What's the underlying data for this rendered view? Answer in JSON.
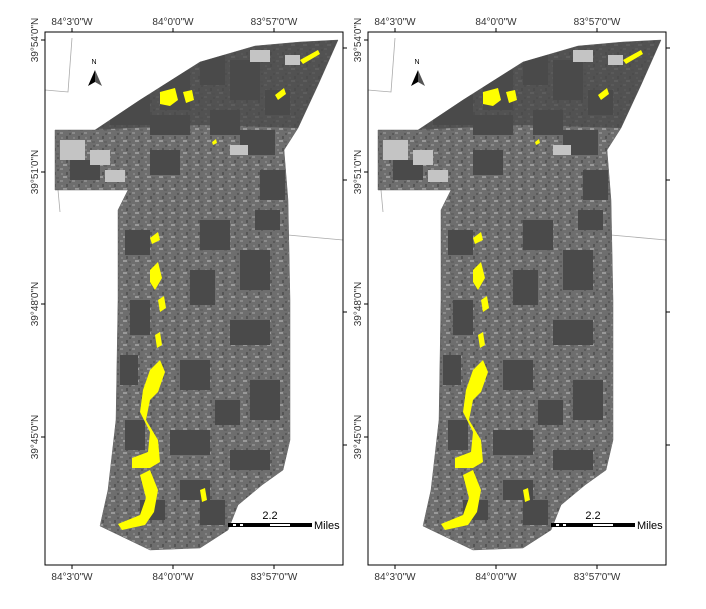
{
  "panels": [
    {
      "id": "left",
      "lon_labels": [
        "84°3'0\"W",
        "84°0'0\"W",
        "83°57'0\"W"
      ],
      "lat_labels": [
        "39°54'0\"N",
        "39°51'0\"N",
        "39°48'0\"N",
        "39°45'0\"N"
      ],
      "north_label": "N",
      "scale_value": "2.2",
      "scale_unit": "Miles"
    },
    {
      "id": "right",
      "lon_labels": [
        "84°3'0\"W",
        "84°0'0\"W",
        "83°57'0\"W"
      ],
      "lat_labels": [
        "39°54'0\"N",
        "39°51'0\"N",
        "39°48'0\"N",
        "39°45'0\"N"
      ],
      "north_label": "N",
      "scale_value": "2.2",
      "scale_unit": "Miles"
    }
  ],
  "colors": {
    "highlight": "#ffff00",
    "dark_land": "#4a4a4a",
    "mid_land": "#7a7a7a",
    "light_land": "#c4c4c4",
    "frame": "#000000"
  },
  "icons": [
    "north-arrow-icon",
    "scale-bar"
  ]
}
